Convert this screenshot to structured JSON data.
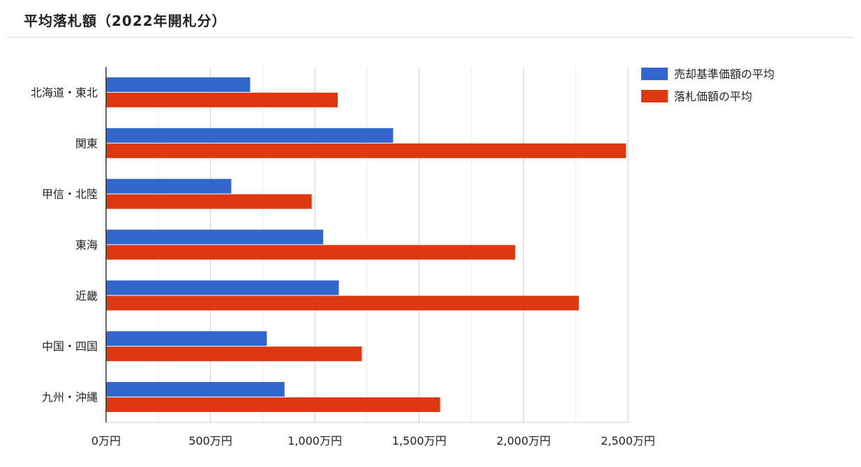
{
  "chart_data": {
    "type": "bar",
    "orientation": "horizontal",
    "title": "平均落札額（2022年開札分）",
    "categories": [
      "北海道・東北",
      "関東",
      "甲信・北陸",
      "東海",
      "近畿",
      "中国・四国",
      "九州・沖縄"
    ],
    "series": [
      {
        "name": "売却基準価額の平均",
        "color": "#3366cc",
        "values": [
          690,
          1375,
          600,
          1040,
          1115,
          770,
          855
        ]
      },
      {
        "name": "落札価額の平均",
        "color": "#dc3912",
        "values": [
          1110,
          2490,
          985,
          1960,
          2265,
          1225,
          1600
        ]
      }
    ],
    "x_ticks": [
      "0万円",
      "500万円",
      "1,000万円",
      "1,500万円",
      "2,000万円",
      "2,500万円"
    ],
    "x_tick_values": [
      0,
      500,
      1000,
      1500,
      2000,
      2500
    ],
    "xlim": [
      0,
      2500
    ],
    "x_unit": "万円",
    "grid": true,
    "legend_position": "right"
  }
}
